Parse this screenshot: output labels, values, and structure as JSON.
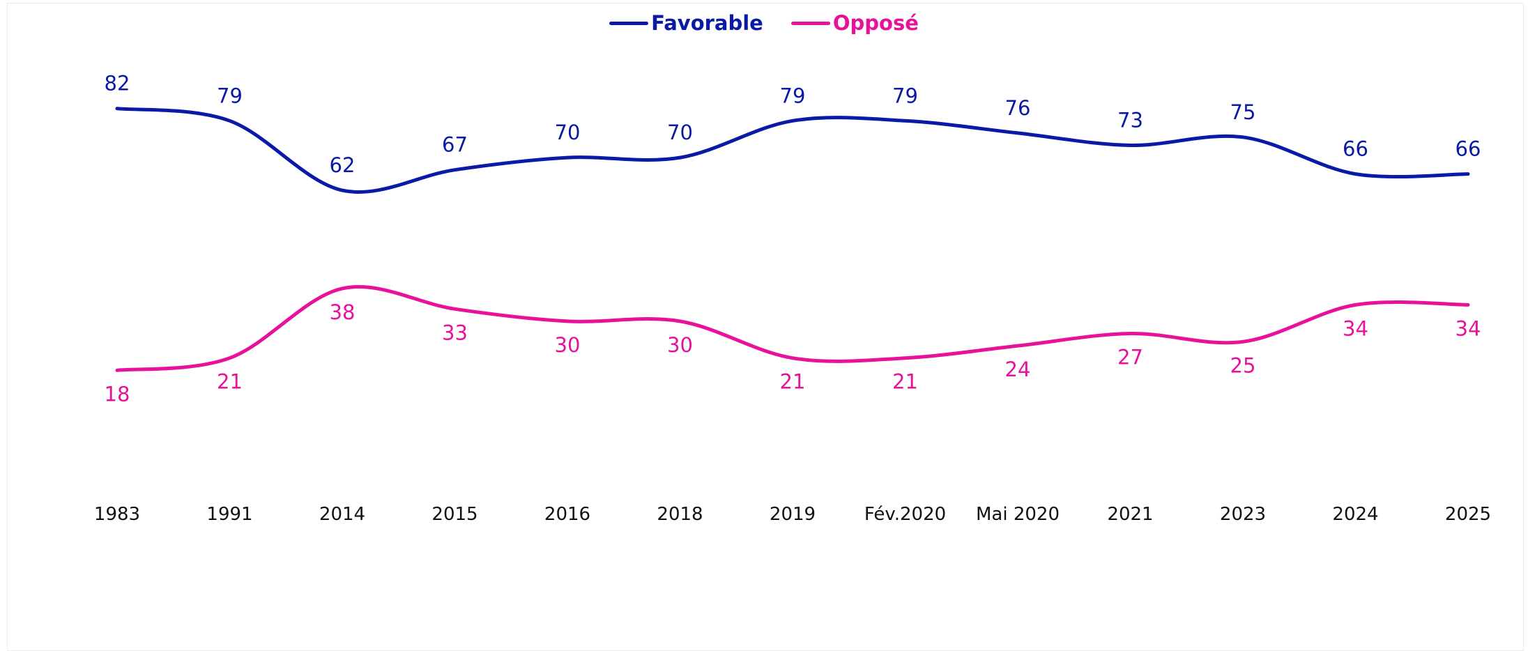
{
  "colors": {
    "favorable": "#0a1aa6",
    "oppose": "#e8119a",
    "axis_text": "#111111"
  },
  "chart_data": {
    "type": "line",
    "categories": [
      "1983",
      "1991",
      "2014",
      "2015",
      "2016",
      "2018",
      "2019",
      "Fév.2020",
      "Mai 2020",
      "2021",
      "2023",
      "2024",
      "2025"
    ],
    "series": [
      {
        "name": "Favorable",
        "values": [
          82,
          79,
          62,
          67,
          70,
          70,
          79,
          79,
          76,
          73,
          75,
          66,
          66
        ]
      },
      {
        "name": "Opposé",
        "values": [
          18,
          21,
          38,
          33,
          30,
          30,
          21,
          21,
          24,
          27,
          25,
          34,
          34
        ]
      }
    ],
    "legend_position": "top-center",
    "grid": false,
    "title": "",
    "xlabel": "",
    "ylabel": ""
  }
}
